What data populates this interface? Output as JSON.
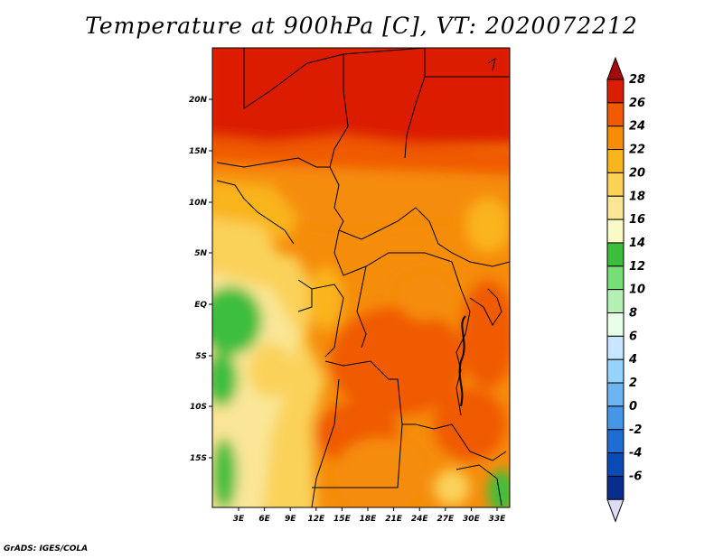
{
  "title": "Temperature at 900hPa [C], VT: 2020072212",
  "footer": "GrADS: IGES/COLA",
  "map": {
    "lon_ticks": [
      "3E",
      "6E",
      "9E",
      "12E",
      "15E",
      "18E",
      "21E",
      "24E",
      "27E",
      "30E",
      "33E"
    ],
    "lat_ticks": [
      "20N",
      "15N",
      "10N",
      "5N",
      "EQ",
      "5S",
      "10S",
      "15S"
    ]
  },
  "colorbar": {
    "labels": [
      "28",
      "26",
      "24",
      "22",
      "20",
      "18",
      "16",
      "14",
      "12",
      "10",
      "8",
      "6",
      "4",
      "2",
      "0",
      "-2",
      "-4",
      "-6"
    ],
    "colors": [
      "#a50a0a",
      "#dc1e00",
      "#f05a00",
      "#f58c0a",
      "#fab41e",
      "#fad25a",
      "#fae696",
      "#fafac8",
      "#3cbe3c",
      "#78dc78",
      "#b4f0b4",
      "#e6ffe6",
      "#c8e6ff",
      "#96d2fa",
      "#6eb4f0",
      "#4696e6",
      "#1e6ed2",
      "#0a4bb4",
      "#0a2d8c",
      "#000064"
    ]
  }
}
